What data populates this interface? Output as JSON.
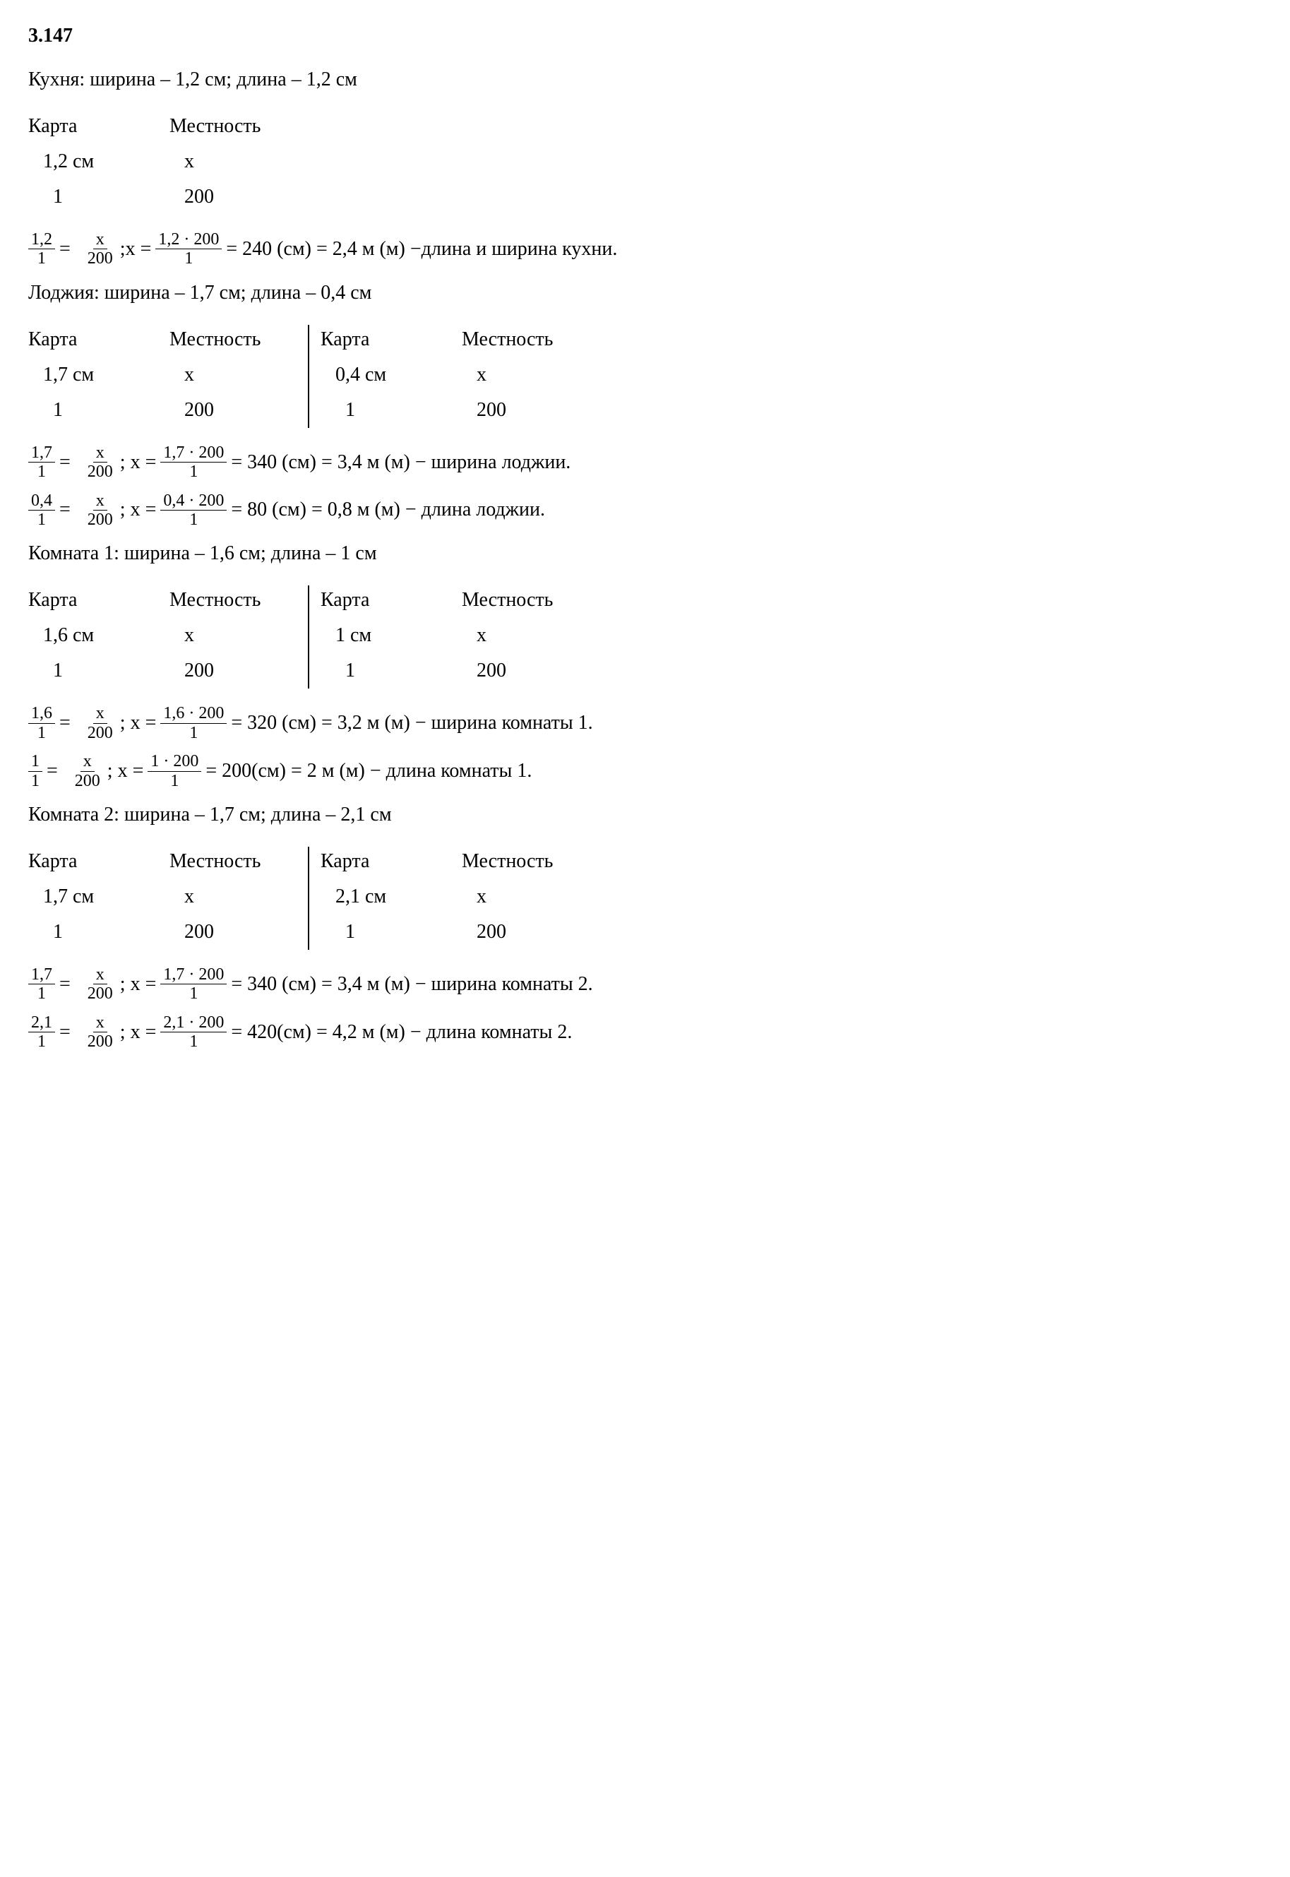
{
  "title": "3.147",
  "colors": {
    "text": "#000000",
    "background": "#ffffff"
  },
  "typography": {
    "font_family": "Times New Roman",
    "base_fontsize": 28,
    "frac_fontsize": 24,
    "title_fontweight": "bold"
  },
  "sections": [
    {
      "heading": "Кухня: ширина – 1,2 см; длина – 1,2 см",
      "tables": [
        [
          {
            "h1": "Карта",
            "h2": "Местность",
            "r1c1": "1,2 см",
            "r1c2": "x",
            "r2c1": "1",
            "r2c2": "200"
          }
        ]
      ],
      "equations": [
        {
          "lhs_num": "1,2",
          "lhs_den": "1",
          "mid_num": "x",
          "mid_den": "200",
          "calc_num": "1,2 · 200",
          "calc_den": "1",
          "prefix": ";x =",
          "result": "= 240 (см) =  2,4 м (м) −длина и ширина кухни."
        }
      ]
    },
    {
      "heading": "Лоджия: ширина – 1,7 см; длина – 0,4 см",
      "tables": [
        [
          {
            "h1": "Карта",
            "h2": "Местность",
            "r1c1": "1,7 см",
            "r1c2": "x",
            "r2c1": "1",
            "r2c2": "200"
          },
          {
            "h1": "Карта",
            "h2": "Местность",
            "r1c1": "0,4 см",
            "r1c2": "x",
            "r2c1": "1",
            "r2c2": "200"
          }
        ]
      ],
      "equations": [
        {
          "lhs_num": "1,7",
          "lhs_den": "1",
          "mid_num": "x",
          "mid_den": "200",
          "calc_num": "1,7 · 200",
          "calc_den": "1",
          "prefix": "; x =",
          "result": "= 340 (см) =  3,4 м (м) −  ширина лоджии."
        },
        {
          "lhs_num": "0,4",
          "lhs_den": "1",
          "mid_num": "x",
          "mid_den": "200",
          "calc_num": "0,4 · 200",
          "calc_den": "1",
          "prefix": "; x =",
          "result": "= 80 (см) =  0,8 м (м) −  длина лоджии."
        }
      ]
    },
    {
      "heading": "Комната 1: ширина – 1,6 см; длина – 1 см",
      "tables": [
        [
          {
            "h1": "Карта",
            "h2": "Местность",
            "r1c1": "1,6 см",
            "r1c2": "x",
            "r2c1": "1",
            "r2c2": "200"
          },
          {
            "h1": "Карта",
            "h2": "Местность",
            "r1c1": "1 см",
            "r1c2": "x",
            "r2c1": "1",
            "r2c2": "200"
          }
        ]
      ],
      "equations": [
        {
          "lhs_num": "1,6",
          "lhs_den": "1",
          "mid_num": "x",
          "mid_den": "200",
          "calc_num": "1,6 · 200",
          "calc_den": "1",
          "prefix": "; x =",
          "result": "= 320 (см) =  3,2 м (м) −  ширина комнаты 1."
        },
        {
          "lhs_num": "1",
          "lhs_den": "1",
          "mid_num": "x",
          "mid_den": "200",
          "calc_num": "1 · 200",
          "calc_den": "1",
          "prefix": "; x =",
          "result": "= 200(см) =  2 м (м) −  длина комнаты 1."
        }
      ]
    },
    {
      "heading": "Комната 2: ширина – 1,7 см; длина – 2,1 см",
      "tables": [
        [
          {
            "h1": "Карта",
            "h2": "Местность",
            "r1c1": "1,7 см",
            "r1c2": "x",
            "r2c1": "1",
            "r2c2": "200"
          },
          {
            "h1": "Карта",
            "h2": "Местность",
            "r1c1": "2,1 см",
            "r1c2": "x",
            "r2c1": "1",
            "r2c2": "200"
          }
        ]
      ],
      "equations": [
        {
          "lhs_num": "1,7",
          "lhs_den": "1",
          "mid_num": "x",
          "mid_den": "200",
          "calc_num": "1,7 · 200",
          "calc_den": "1",
          "prefix": "; x =",
          "result": "= 340 (см) =  3,4 м (м) −  ширина комнаты 2."
        },
        {
          "lhs_num": "2,1",
          "lhs_den": "1",
          "mid_num": "x",
          "mid_den": "200",
          "calc_num": "2,1 · 200",
          "calc_den": "1",
          "prefix": "; x =",
          "result": "= 420(см) =  4,2 м (м) −  длина комнаты 2."
        }
      ]
    }
  ]
}
